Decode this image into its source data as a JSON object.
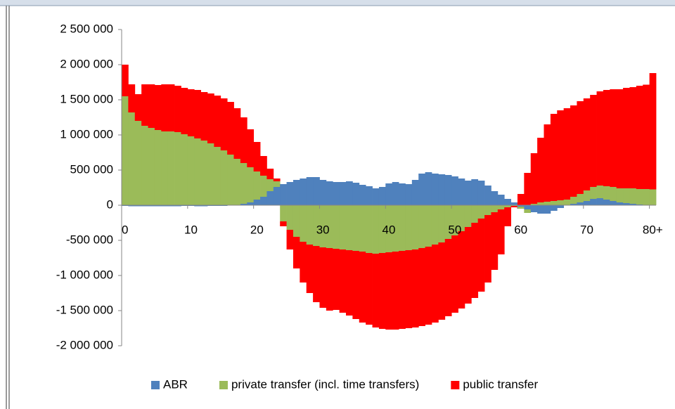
{
  "chart_data": {
    "type": "bar",
    "stacked": true,
    "categories": [
      "0",
      null,
      null,
      null,
      null,
      null,
      null,
      null,
      null,
      null,
      "10",
      null,
      null,
      null,
      null,
      null,
      null,
      null,
      null,
      null,
      "20",
      null,
      null,
      null,
      null,
      null,
      null,
      null,
      null,
      null,
      "30",
      null,
      null,
      null,
      null,
      null,
      null,
      null,
      null,
      null,
      "40",
      null,
      null,
      null,
      null,
      null,
      null,
      null,
      null,
      null,
      "50",
      null,
      null,
      null,
      null,
      null,
      null,
      null,
      null,
      null,
      "60",
      null,
      null,
      null,
      null,
      null,
      null,
      null,
      null,
      null,
      "70",
      null,
      null,
      null,
      null,
      null,
      null,
      null,
      null,
      null,
      "80+"
    ],
    "series": [
      {
        "name": "ABR",
        "color": "#4f81bd",
        "values": [
          -10000,
          -15000,
          -15000,
          -15000,
          -15000,
          -15000,
          -15000,
          -15000,
          -15000,
          -10000,
          -10000,
          -15000,
          -15000,
          -10000,
          -10000,
          -10000,
          -5000,
          0,
          20000,
          40000,
          80000,
          120000,
          200000,
          260000,
          300000,
          330000,
          360000,
          380000,
          400000,
          400000,
          360000,
          340000,
          330000,
          330000,
          340000,
          320000,
          290000,
          270000,
          240000,
          260000,
          310000,
          330000,
          310000,
          300000,
          360000,
          450000,
          470000,
          450000,
          440000,
          430000,
          410000,
          380000,
          350000,
          370000,
          350000,
          280000,
          200000,
          150000,
          90000,
          40000,
          -20000,
          -60000,
          -100000,
          -120000,
          -120000,
          -80000,
          -40000,
          0,
          20000,
          40000,
          60000,
          90000,
          100000,
          80000,
          60000,
          40000,
          30000,
          20000,
          10000,
          5000,
          0
        ]
      },
      {
        "name": "private transfer (incl. time transfers)",
        "color": "#9bbb59",
        "values": [
          1550000,
          1320000,
          1200000,
          1130000,
          1100000,
          1070000,
          1050000,
          1050000,
          1040000,
          1010000,
          980000,
          950000,
          920000,
          880000,
          830000,
          780000,
          720000,
          660000,
          580000,
          500000,
          400000,
          300000,
          170000,
          80000,
          -230000,
          -350000,
          -450000,
          -520000,
          -560000,
          -580000,
          -600000,
          -610000,
          -620000,
          -630000,
          -640000,
          -650000,
          -660000,
          -680000,
          -690000,
          -680000,
          -670000,
          -660000,
          -650000,
          -640000,
          -630000,
          -610000,
          -590000,
          -560000,
          -530000,
          -480000,
          -430000,
          -370000,
          -310000,
          -250000,
          -190000,
          -140000,
          -100000,
          -60000,
          -30000,
          -10000,
          -30000,
          -50000,
          20000,
          40000,
          50000,
          60000,
          70000,
          80000,
          100000,
          120000,
          150000,
          170000,
          180000,
          190000,
          200000,
          200000,
          210000,
          220000,
          220000,
          225000,
          225000
        ]
      },
      {
        "name": "public transfer",
        "color": "#ff0000",
        "values": [
          450000,
          400000,
          380000,
          590000,
          620000,
          640000,
          670000,
          670000,
          660000,
          660000,
          670000,
          690000,
          690000,
          710000,
          730000,
          740000,
          750000,
          720000,
          650000,
          540000,
          420000,
          280000,
          150000,
          40000,
          -70000,
          -280000,
          -450000,
          -580000,
          -690000,
          -800000,
          -860000,
          -890000,
          -870000,
          -900000,
          -930000,
          -970000,
          -1010000,
          -1020000,
          -1050000,
          -1080000,
          -1100000,
          -1110000,
          -1110000,
          -1110000,
          -1110000,
          -1110000,
          -1110000,
          -1110000,
          -1100000,
          -1100000,
          -1100000,
          -1100000,
          -1090000,
          -1070000,
          -1040000,
          -960000,
          -820000,
          -640000,
          -270000,
          -20000,
          160000,
          460000,
          720000,
          920000,
          1100000,
          1240000,
          1280000,
          1300000,
          1300000,
          1320000,
          1310000,
          1310000,
          1340000,
          1370000,
          1390000,
          1410000,
          1430000,
          1440000,
          1470000,
          1485000,
          1655000
        ]
      }
    ],
    "ylim": [
      -2000000,
      2500000
    ],
    "yticks": [
      {
        "value": -2000000,
        "label": "-2 000 000"
      },
      {
        "value": -1500000,
        "label": "-1 500 000"
      },
      {
        "value": -1000000,
        "label": "-1 000 000"
      },
      {
        "value": -500000,
        "label": "-500 000"
      },
      0,
      {
        "value": 500000,
        "label": "500 000"
      },
      {
        "value": 1000000,
        "label": "1 000 000"
      },
      {
        "value": 1500000,
        "label": "1 500 000"
      },
      {
        "value": 2000000,
        "label": "2 000 000"
      },
      {
        "value": 2500000,
        "label": "2 500 000"
      }
    ],
    "legend": "bottom"
  }
}
